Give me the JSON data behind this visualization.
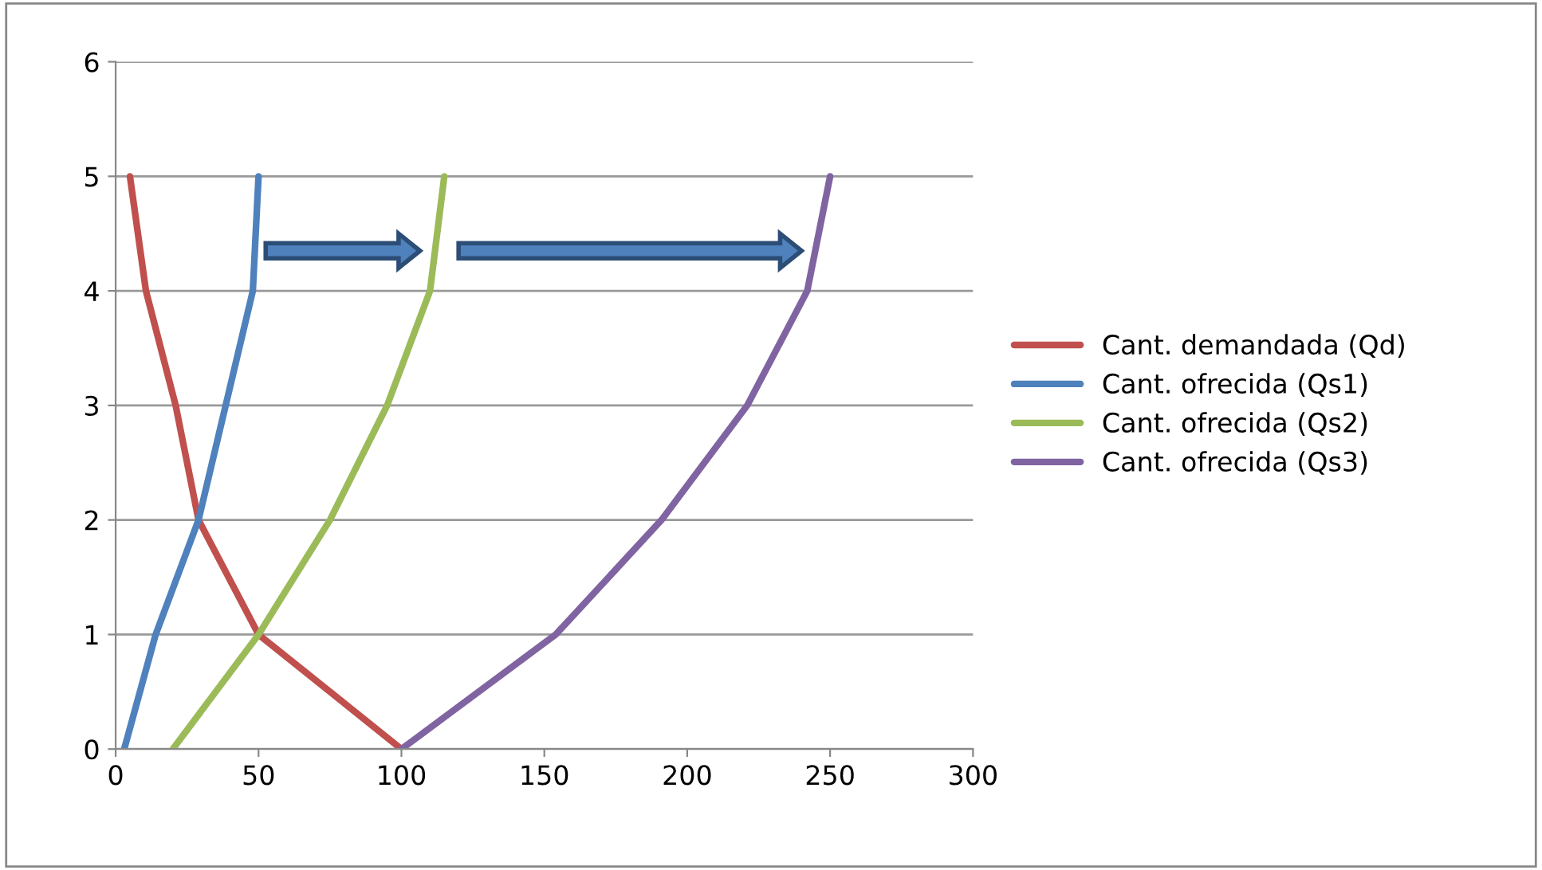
{
  "chart_data": {
    "type": "line",
    "series": [
      {
        "name": "Cant. demandada (Qd)",
        "color": "#c0504d",
        "x": [
          5,
          10.6,
          21,
          29,
          50,
          75,
          100
        ],
        "values": [
          5,
          4,
          3,
          2,
          1,
          0.5,
          0
        ]
      },
      {
        "name": "Cant. ofrecida (Qs1)",
        "color": "#4f81bd",
        "x": [
          3,
          14,
          29,
          38.5,
          48,
          50
        ],
        "values": [
          0,
          1,
          2,
          3,
          4,
          5
        ]
      },
      {
        "name": "Cant. ofrecida (Qs2)",
        "color": "#9bbb59",
        "x": [
          20,
          50,
          75,
          95,
          110,
          115
        ],
        "values": [
          0,
          1,
          2,
          3,
          4,
          5
        ]
      },
      {
        "name": "Cant. ofrecida (Qs3)",
        "color": "#8064a2",
        "x": [
          100,
          154,
          191,
          221,
          242,
          250
        ],
        "values": [
          0,
          1,
          2,
          3,
          4,
          5
        ]
      }
    ],
    "xlim": [
      0,
      300
    ],
    "xticks": [
      0,
      50,
      100,
      150,
      200,
      250,
      300
    ],
    "ylim": [
      0,
      6
    ],
    "yticks": [
      0,
      1,
      2,
      3,
      4,
      5,
      6
    ],
    "grid": "y",
    "legend": "right",
    "marker": "none",
    "line_style": "solid"
  }
}
